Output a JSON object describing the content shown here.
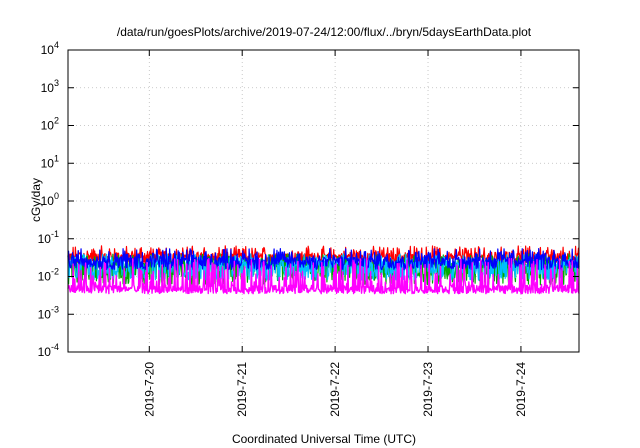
{
  "chart_data": {
    "type": "line",
    "title": "/data/run/goesPlots/archive/2019-07-24/12:00/flux/../bryn/5daysEarthData.plot",
    "xlabel": "Coordinated Universal Time (UTC)",
    "ylabel": "cGy/day",
    "y_scale": "log",
    "ylim": [
      0.0001,
      10000
    ],
    "xlim": [
      "2019-07-19T03:00",
      "2019-07-24T15:00"
    ],
    "grid": true,
    "legend": "none",
    "y_ticks": [
      {
        "base": "10",
        "exp": "-4"
      },
      {
        "base": "10",
        "exp": "-3"
      },
      {
        "base": "10",
        "exp": "-2"
      },
      {
        "base": "10",
        "exp": "-1"
      },
      {
        "base": "10",
        "exp": "0"
      },
      {
        "base": "10",
        "exp": "1"
      },
      {
        "base": "10",
        "exp": "2"
      },
      {
        "base": "10",
        "exp": "3"
      },
      {
        "base": "10",
        "exp": "4"
      }
    ],
    "x_ticks": [
      "2019-7-20",
      "2019-7-21",
      "2019-7-22",
      "2019-7-23",
      "2019-7-24"
    ],
    "series": [
      {
        "color": "#ff0000",
        "low": 0.022,
        "high": 0.065,
        "base": 0.035
      },
      {
        "color": "#00aa00",
        "low": 0.006,
        "high": 0.04,
        "base": 0.02
      },
      {
        "color": "#00bfff",
        "low": 0.008,
        "high": 0.04,
        "base": 0.022
      },
      {
        "color": "#0000ff",
        "low": 0.015,
        "high": 0.055,
        "base": 0.028
      },
      {
        "color": "#ff00ff",
        "low": 0.0035,
        "high": 0.03,
        "base": 0.005
      }
    ]
  }
}
